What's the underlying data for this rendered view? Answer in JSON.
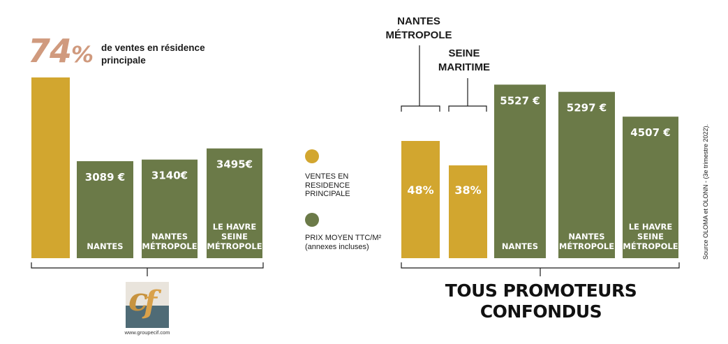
{
  "headline": {
    "big_value": "74",
    "big_unit": "%",
    "text": "de ventes en résidence principale"
  },
  "legend": {
    "items": [
      {
        "label": "VENTES EN RESIDENCE PRINCIPALE",
        "color": "#d2a62f"
      },
      {
        "label": "PRIX MOYEN TTC/m²",
        "sublabel": "(annexes incluses)",
        "color": "#6b7a48"
      }
    ]
  },
  "right_top_labels": {
    "nantes_metropole": "NANTES MÉTROPOLE",
    "seine_maritime": "SEINE MARITIME"
  },
  "footer_title": "TOUS PROMOTEURS CONFONDUS",
  "source": "Source OLOMA et OLONN - (3e trimestre 2022).",
  "logo": {
    "url_text": "www.groupecif.com"
  },
  "colors": {
    "gold": "#d2a62f",
    "olive": "#6b7a48",
    "pink": "#d09a7e"
  },
  "chart_data": [
    {
      "type": "bar",
      "categories": [
        "",
        "NANTES",
        "NANTES MÉTROPOLE",
        "LE HAVRE SEINE MÉTROPOLE"
      ],
      "series": [
        {
          "name": "VENTES EN RESIDENCE PRINCIPALE",
          "values": [
            74,
            null,
            null,
            null
          ],
          "labels": [
            "",
            "",
            "",
            ""
          ]
        },
        {
          "name": "PRIX MOYEN TTC/m²",
          "values": [
            null,
            3089,
            3140,
            3495
          ],
          "labels": [
            "",
            "3089 €",
            "3140€",
            "3495€"
          ]
        }
      ]
    },
    {
      "type": "bar",
      "title": "TOUS PROMOTEURS CONFONDUS",
      "categories": [
        "NANTES MÉTROPOLE",
        "SEINE MARITIME",
        "NANTES",
        "NANTES MÉTROPOLE",
        "LE HAVRE SEINE MÉTROPOLE"
      ],
      "series": [
        {
          "name": "VENTES EN RESIDENCE PRINCIPALE",
          "values": [
            48,
            38,
            null,
            null,
            null
          ],
          "labels": [
            "48%",
            "38%",
            "",
            "",
            ""
          ]
        },
        {
          "name": "PRIX MOYEN TTC/m²",
          "values": [
            null,
            null,
            5527,
            5297,
            4507
          ],
          "labels": [
            "",
            "",
            "5527 €",
            "5297 €",
            "4507 €"
          ]
        }
      ]
    }
  ]
}
